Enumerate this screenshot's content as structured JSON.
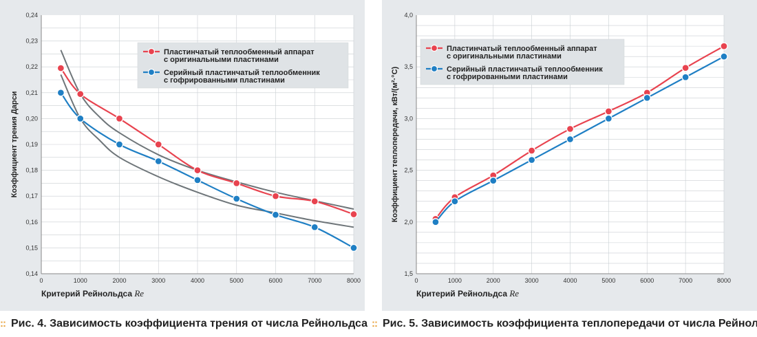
{
  "chart_data": [
    {
      "type": "line",
      "caption_prefix": "Рис. 4.",
      "caption_text": "Зависимость коэффициента трения от числа Рейнольдса",
      "xlabel": "Критерий Рейнольдса",
      "xlabel_var": "Re",
      "ylabel": "Коэффициент трения Дарси",
      "xlim": [
        0,
        8000
      ],
      "ylim": [
        0.14,
        0.24
      ],
      "xticks": [
        "0",
        "1000",
        "2000",
        "3000",
        "4000",
        "5000",
        "6000",
        "7000",
        "8000"
      ],
      "yticks": [
        "0,14",
        "0,15",
        "0,16",
        "0,17",
        "0,18",
        "0,19",
        "0,20",
        "0,21",
        "0,22",
        "0,23",
        "0,24"
      ],
      "grid": true,
      "legend_position": "top-right",
      "series": [
        {
          "name": "Пластинчатый теплообменный аппарат с оригинальными пластинами",
          "legend_lines": [
            "Пластинчатый теплообменный аппарат",
            "с оригинальными пластинами"
          ],
          "color": "#e8434f",
          "x": [
            500,
            1000,
            2000,
            3000,
            4000,
            5000,
            6000,
            7000,
            8000
          ],
          "y": [
            0.2195,
            0.2095,
            0.2,
            0.19,
            0.18,
            0.175,
            0.17,
            0.168,
            0.163
          ]
        },
        {
          "name": "Серийный пластинчатый теплообменник с гофрированными пластинами",
          "legend_lines": [
            "Серийный пластинчатый теплообменник",
            "с гофрированными пластинами"
          ],
          "color": "#1f7fc4",
          "x": [
            500,
            1000,
            2000,
            3000,
            4000,
            5000,
            6000,
            7000,
            8000
          ],
          "y": [
            0.21,
            0.2,
            0.19,
            0.1835,
            0.1762,
            0.169,
            0.1628,
            0.158,
            0.15
          ]
        }
      ],
      "trend_curves": [
        {
          "color": "#6e7579",
          "x": [
            500,
            1000,
            1500,
            2000,
            3000,
            4000,
            5000,
            6000,
            7000,
            8000
          ],
          "y": [
            0.2265,
            0.2095,
            0.2005,
            0.1945,
            0.186,
            0.18,
            0.1755,
            0.1715,
            0.1682,
            0.165
          ]
        },
        {
          "color": "#6e7579",
          "x": [
            500,
            1000,
            1500,
            2000,
            3000,
            4000,
            5000,
            6000,
            7000,
            8000
          ],
          "y": [
            0.217,
            0.2,
            0.1915,
            0.185,
            0.1775,
            0.1715,
            0.1665,
            0.1635,
            0.1605,
            0.158
          ]
        }
      ]
    },
    {
      "type": "line",
      "caption_prefix": "Рис. 5.",
      "caption_text": "Зависимость коэффициента теплопередачи от числа Рейнольдса",
      "xlabel": "Критерий Рейнольдса",
      "xlabel_var": "Re",
      "ylabel": "Коэффициент теплопередачи, кВт/(м²·°С)",
      "xlim": [
        0,
        8000
      ],
      "ylim": [
        1.5,
        4.0
      ],
      "xticks": [
        "0",
        "1000",
        "2000",
        "3000",
        "4000",
        "5000",
        "6000",
        "7000",
        "8000"
      ],
      "yticks": [
        "1,5",
        "2,0",
        "2,5",
        "3,0",
        "3,5",
        "4,0"
      ],
      "grid": true,
      "legend_position": "top-left",
      "series": [
        {
          "name": "Пластинчатый теплообменный аппарат с оригинальными пластинами",
          "legend_lines": [
            "Пластинчатый теплообменный аппарат",
            "с оригинальными пластинами"
          ],
          "color": "#e8434f",
          "x": [
            500,
            1000,
            2000,
            3000,
            4000,
            5000,
            6000,
            7000,
            8000
          ],
          "y": [
            2.03,
            2.24,
            2.45,
            2.69,
            2.9,
            3.07,
            3.25,
            3.49,
            3.7
          ]
        },
        {
          "name": "Серийный пластинчатый теплообменник с гофрированными пластинами",
          "legend_lines": [
            "Серийный пластинчатый теплообменник",
            "с гофрированными пластинами"
          ],
          "color": "#1f7fc4",
          "x": [
            500,
            1000,
            2000,
            3000,
            4000,
            5000,
            6000,
            7000,
            8000
          ],
          "y": [
            2.0,
            2.2,
            2.4,
            2.6,
            2.8,
            3.0,
            3.2,
            3.4,
            3.6
          ]
        }
      ],
      "trend_curves": []
    }
  ]
}
